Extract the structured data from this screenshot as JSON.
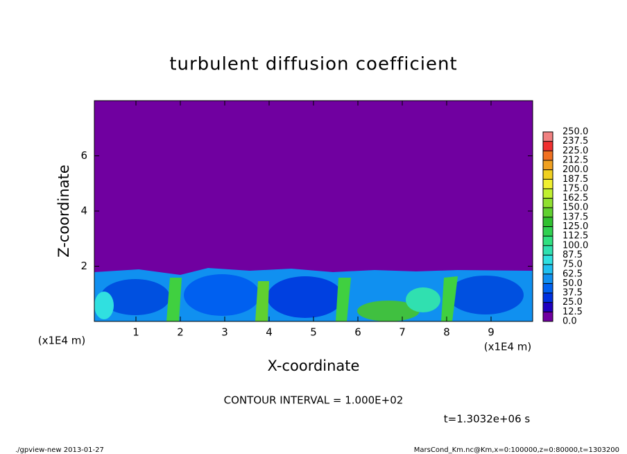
{
  "chart_data": {
    "type": "heatmap",
    "title": "turbulent diffusion coefficient",
    "xlabel": "X-coordinate",
    "ylabel": "Z-coordinate",
    "x_unit_label": "(x1E4 m)",
    "xlim": [
      0,
      10
    ],
    "ylim": [
      0,
      8
    ],
    "xticks": [
      1,
      2,
      3,
      4,
      5,
      6,
      7,
      8,
      9
    ],
    "yticks": [
      2,
      4,
      6
    ],
    "colorbar": {
      "ticks": [
        {
          "value": 0,
          "label": "0.0"
        },
        {
          "value": 12.5,
          "label": "12.5"
        },
        {
          "value": 25,
          "label": "25.0"
        },
        {
          "value": 37.5,
          "label": "37.5"
        },
        {
          "value": 50,
          "label": "50.0"
        },
        {
          "value": 62.5,
          "label": "62.5"
        },
        {
          "value": 75,
          "label": "75.0"
        },
        {
          "value": 87.5,
          "label": "87.5"
        },
        {
          "value": 100,
          "label": "100.0"
        },
        {
          "value": 112.5,
          "label": "112.5"
        },
        {
          "value": 125,
          "label": "125.0"
        },
        {
          "value": 137.5,
          "label": "137.5"
        },
        {
          "value": 150,
          "label": "150.0"
        },
        {
          "value": 162.5,
          "label": "162.5"
        },
        {
          "value": 175,
          "label": "175.0"
        },
        {
          "value": 187.5,
          "label": "187.5"
        },
        {
          "value": 200,
          "label": "200.0"
        },
        {
          "value": 212.5,
          "label": "212.5"
        },
        {
          "value": 225,
          "label": "225.0"
        },
        {
          "value": 237.5,
          "label": "237.5"
        },
        {
          "value": 250,
          "label": "250.0"
        }
      ],
      "colors": [
        "#7000a0",
        "#2000c0",
        "#0030e0",
        "#0060f0",
        "#1090f0",
        "#20c0f0",
        "#30e0e0",
        "#30e0b0",
        "#30e080",
        "#30d050",
        "#30c030",
        "#60d030",
        "#90e030",
        "#c0f030",
        "#f0f030",
        "#f0d020",
        "#f0a020",
        "#f07020",
        "#f03030",
        "#f08080"
      ]
    },
    "contour_interval_text": "CONTOUR INTERVAL = 1.000E+02",
    "time_text": "t=1.3032e+06 s",
    "footer_left": "./gpview-new  2013-01-27",
    "footer_right": "MarsCond_Km.nc@Km,x=0:100000,z=0:80000,t=1303200"
  }
}
